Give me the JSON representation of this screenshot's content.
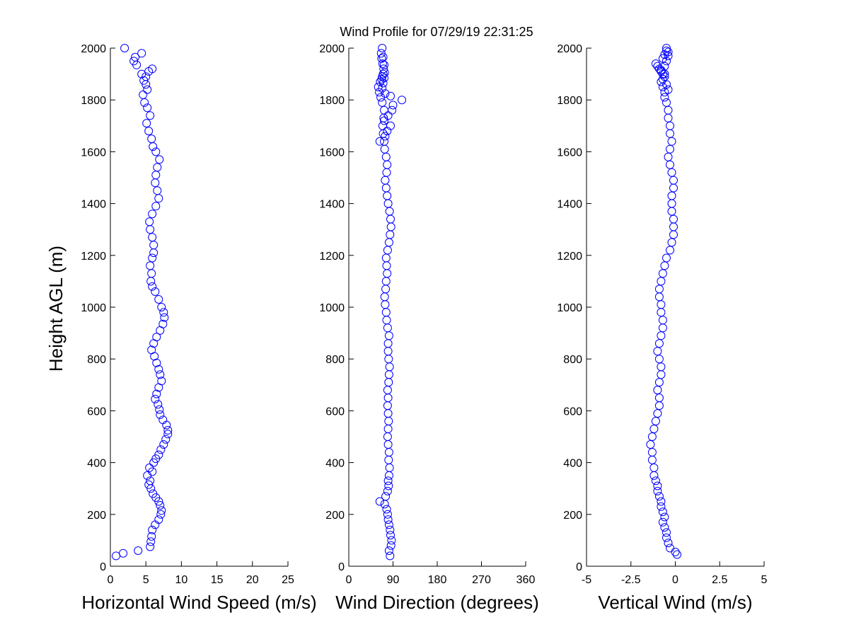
{
  "figure": {
    "title": "Wind Profile for  07/29/19 22:31:25",
    "ylabel": "Height AGL (m)"
  },
  "colors": {
    "marker": "#0000ff",
    "axis": "#000000",
    "background": "#ffffff"
  },
  "chart_data": [
    {
      "type": "scatter",
      "xlabel": "Horizontal Wind Speed (m/s)",
      "ylabel": "Height AGL (m)",
      "xlim": [
        0,
        25
      ],
      "ylim": [
        0,
        2000
      ],
      "xticks": [
        "0",
        "5",
        "10",
        "15",
        "20",
        "25"
      ],
      "yticks": [
        "0",
        "200",
        "400",
        "600",
        "800",
        "1000",
        "1200",
        "1400",
        "1600",
        "1800",
        "2000"
      ],
      "grid": false,
      "marker": "open-circle",
      "series": [
        {
          "x": [
            0.8,
            1.8,
            3.9,
            5.6,
            5.7,
            5.8,
            5.9,
            6.3,
            6.8,
            7.1,
            7.2,
            7.0,
            6.8,
            6.4,
            6.0,
            5.7,
            5.4,
            5.6,
            5.2,
            5.9,
            5.5,
            6.1,
            6.4,
            6.8,
            7.1,
            7.5,
            7.8,
            8.1,
            8.1,
            7.9,
            7.4,
            7.0,
            6.9,
            6.7,
            6.3,
            6.5,
            6.8,
            7.2,
            7.0,
            6.8,
            6.5,
            6.2,
            5.8,
            6.1,
            6.5,
            7.0,
            7.4,
            7.6,
            7.5,
            7.2,
            6.8,
            6.3,
            5.9,
            5.7,
            5.8,
            5.6,
            5.9,
            6.1,
            6.1,
            5.9,
            5.6,
            5.5,
            5.9,
            6.4,
            6.8,
            6.6,
            6.3,
            6.4,
            6.6,
            6.9,
            6.4,
            6.0,
            5.8,
            5.4,
            5.1,
            5.6,
            5.2,
            4.8,
            4.6,
            5.2,
            5.0,
            4.7,
            5.0,
            4.4,
            5.4,
            5.9,
            3.7,
            3.3,
            3.5,
            4.4,
            2.0
          ],
          "y": [
            40,
            50,
            60,
            75,
            95,
            115,
            140,
            160,
            180,
            200,
            215,
            235,
            250,
            265,
            280,
            300,
            315,
            330,
            350,
            365,
            380,
            400,
            415,
            430,
            450,
            470,
            490,
            510,
            525,
            545,
            565,
            585,
            605,
            625,
            645,
            665,
            690,
            715,
            740,
            760,
            785,
            810,
            835,
            860,
            885,
            910,
            935,
            960,
            980,
            1000,
            1030,
            1060,
            1080,
            1100,
            1130,
            1160,
            1190,
            1210,
            1240,
            1270,
            1300,
            1330,
            1360,
            1390,
            1420,
            1450,
            1480,
            1510,
            1540,
            1570,
            1600,
            1620,
            1650,
            1680,
            1710,
            1740,
            1770,
            1790,
            1820,
            1840,
            1860,
            1875,
            1890,
            1900,
            1910,
            1920,
            1935,
            1950,
            1965,
            1980,
            2000
          ]
        }
      ]
    },
    {
      "type": "scatter",
      "xlabel": "Wind Direction (degrees)",
      "ylabel": "",
      "xlim": [
        0,
        360
      ],
      "ylim": [
        0,
        2000
      ],
      "xticks": [
        "0",
        "90",
        "180",
        "270",
        "360"
      ],
      "yticks": [
        "0",
        "200",
        "400",
        "600",
        "800",
        "1000",
        "1200",
        "1400",
        "1600",
        "1800",
        "2000"
      ],
      "grid": false,
      "marker": "open-circle",
      "series": [
        {
          "x": [
            84,
            82,
            86,
            87,
            85,
            84,
            82,
            80,
            79,
            77,
            73,
            63,
            75,
            79,
            81,
            80,
            82,
            83,
            81,
            82,
            80,
            79,
            80,
            81,
            80,
            79,
            80,
            79,
            81,
            82,
            83,
            81,
            80,
            80,
            82,
            79,
            77,
            76,
            74,
            73,
            75,
            76,
            78,
            77,
            76,
            79,
            82,
            84,
            86,
            85,
            83,
            80,
            78,
            76,
            74,
            77,
            78,
            76,
            73,
            72,
            70,
            69,
            71,
            72,
            68,
            65,
            62,
            60,
            64,
            67,
            68,
            70,
            71,
            69,
            67,
            66,
            68,
            70,
            72,
            73,
            72,
            70,
            68,
            74,
            85,
            108,
            90,
            88,
            80,
            72,
            85,
            78,
            74,
            63
          ],
          "y": [
            40,
            60,
            80,
            100,
            120,
            140,
            160,
            180,
            200,
            220,
            240,
            250,
            270,
            290,
            310,
            330,
            350,
            380,
            410,
            440,
            470,
            500,
            530,
            560,
            590,
            620,
            650,
            680,
            710,
            740,
            770,
            800,
            830,
            860,
            890,
            920,
            950,
            980,
            1010,
            1040,
            1070,
            1100,
            1130,
            1160,
            1190,
            1220,
            1250,
            1280,
            1310,
            1340,
            1370,
            1400,
            1430,
            1460,
            1490,
            1520,
            1550,
            1580,
            1610,
            1640,
            1670,
            1700,
            1730,
            1760,
            1790,
            1810,
            1830,
            1850,
            1870,
            1880,
            1890,
            1900,
            1920,
            1940,
            1960,
            1980,
            2000,
            1965,
            1935,
            1905,
            1885,
            1865,
            1845,
            1825,
            1815,
            1800,
            1780,
            1760,
            1740,
            1720,
            1700,
            1680,
            1660,
            1640
          ],
          "note": ""
        }
      ]
    },
    {
      "type": "scatter",
      "xlabel": "Vertical Wind (m/s)",
      "ylabel": "",
      "xlim": [
        -5,
        5
      ],
      "ylim": [
        0,
        2000
      ],
      "xticks": [
        "-5",
        "-2.5",
        "0",
        "2.5",
        "5"
      ],
      "yticks": [
        "0",
        "200",
        "400",
        "600",
        "800",
        "1000",
        "1200",
        "1400",
        "1600",
        "1800",
        "2000"
      ],
      "grid": false,
      "marker": "open-circle",
      "series": [
        {
          "x": [
            0.1,
            0.0,
            -0.3,
            -0.4,
            -0.5,
            -0.5,
            -0.6,
            -0.7,
            -0.6,
            -0.7,
            -0.8,
            -0.8,
            -0.9,
            -1.0,
            -1.0,
            -1.1,
            -1.2,
            -1.2,
            -1.3,
            -1.3,
            -1.4,
            -1.3,
            -1.2,
            -1.1,
            -1.0,
            -0.9,
            -0.9,
            -1.0,
            -0.9,
            -0.8,
            -0.8,
            -0.9,
            -1.0,
            -0.9,
            -0.8,
            -0.7,
            -0.7,
            -0.8,
            -0.8,
            -0.9,
            -0.9,
            -0.8,
            -0.7,
            -0.6,
            -0.5,
            -0.3,
            -0.2,
            -0.1,
            -0.1,
            -0.1,
            -0.2,
            -0.2,
            -0.2,
            -0.1,
            -0.1,
            -0.2,
            -0.3,
            -0.4,
            -0.3,
            -0.2,
            -0.3,
            -0.3,
            -0.4,
            -0.4,
            -0.5,
            -0.6,
            -0.6,
            -0.7,
            -0.8,
            -0.7,
            -0.6,
            -0.7,
            -0.8,
            -0.9,
            -1.0,
            -1.1,
            -0.7,
            -0.6,
            -0.5,
            -0.5,
            -0.4,
            -0.4,
            -0.5,
            -0.6,
            -0.8,
            -0.6,
            -0.5,
            -0.4
          ],
          "y": [
            45,
            55,
            70,
            90,
            110,
            130,
            150,
            170,
            190,
            210,
            230,
            250,
            270,
            290,
            310,
            330,
            350,
            380,
            410,
            440,
            470,
            500,
            530,
            560,
            590,
            620,
            650,
            680,
            710,
            740,
            770,
            800,
            830,
            860,
            890,
            920,
            950,
            980,
            1010,
            1040,
            1070,
            1100,
            1130,
            1160,
            1190,
            1220,
            1250,
            1280,
            1310,
            1340,
            1370,
            1400,
            1430,
            1460,
            1490,
            1520,
            1550,
            1580,
            1610,
            1640,
            1670,
            1700,
            1730,
            1760,
            1790,
            1810,
            1830,
            1850,
            1870,
            1880,
            1890,
            1900,
            1910,
            1920,
            1930,
            1940,
            1960,
            1975,
            1990,
            2000,
            1985,
            1970,
            1950,
            1930,
            1915,
            1900,
            1860,
            1840
          ]
        }
      ]
    }
  ]
}
